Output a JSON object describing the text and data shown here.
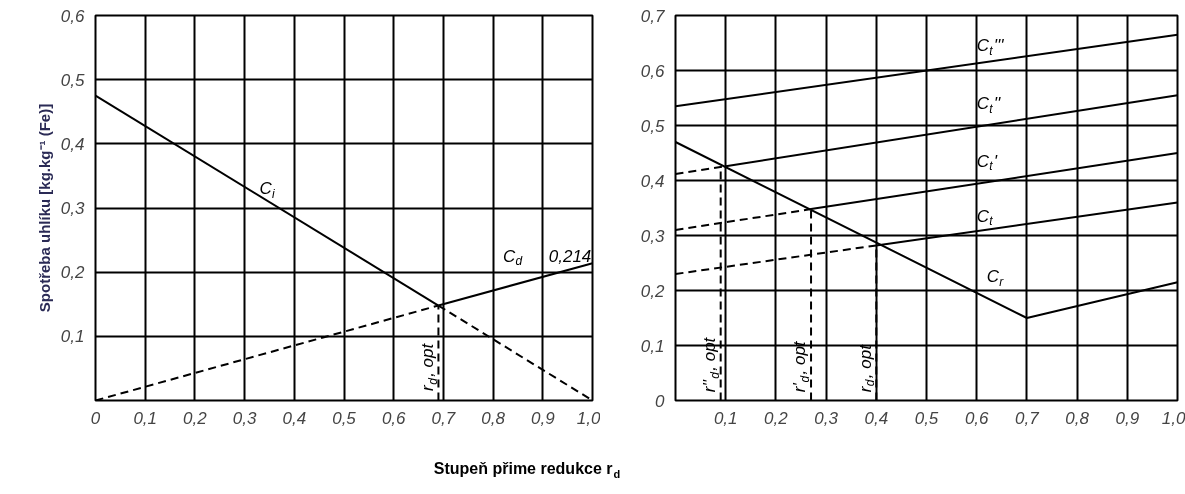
{
  "chart_data": [
    {
      "type": "line",
      "ylabel": "Spotřeba uhlíku [kg.kg⁻¹ (Fe)]",
      "xlabel": "Stupeň přime redukce r$_{d}$",
      "xlim": [
        0,
        1.0
      ],
      "ylim": [
        0,
        0.6
      ],
      "xticks": [
        {
          "value": 0,
          "label": "0"
        },
        {
          "value": 0.1,
          "label": "0,1"
        },
        {
          "value": 0.2,
          "label": "0,2"
        },
        {
          "value": 0.3,
          "label": "0,3"
        },
        {
          "value": 0.4,
          "label": "0,4"
        },
        {
          "value": 0.5,
          "label": "0,5"
        },
        {
          "value": 0.6,
          "label": "0,6"
        },
        {
          "value": 0.7,
          "label": "0,7"
        },
        {
          "value": 0.8,
          "label": "0,8"
        },
        {
          "value": 0.9,
          "label": "0,9"
        },
        {
          "value": 1.0,
          "label": "1,0"
        }
      ],
      "yticks": [
        {
          "value": 0.1,
          "label": "0,1"
        },
        {
          "value": 0.2,
          "label": "0,2"
        },
        {
          "value": 0.3,
          "label": "0,3"
        },
        {
          "value": 0.4,
          "label": "0,4"
        },
        {
          "value": 0.5,
          "label": "0,5"
        },
        {
          "value": 0.6,
          "label": "0,6"
        }
      ],
      "grid": true,
      "marker": "none",
      "series": [
        {
          "color": "#000000",
          "line_style": "solid",
          "x": [
            0,
            0.69
          ],
          "values": [
            0.475,
            0.148
          ]
        },
        {
          "color": "#000000",
          "line_style": "dashed",
          "x": [
            0.69,
            1.0
          ],
          "values": [
            0.148,
            0
          ]
        },
        {
          "color": "#000000",
          "line_style": "dashed",
          "x": [
            0,
            0.69
          ],
          "values": [
            0,
            0.148
          ]
        },
        {
          "color": "#000000",
          "line_style": "solid",
          "x": [
            0.69,
            1.0
          ],
          "values": [
            0.148,
            0.214
          ]
        },
        {
          "color": "#000000",
          "line_style": "dashed",
          "x": [
            0.69,
            0.69
          ],
          "values": [
            0,
            0.148
          ]
        }
      ],
      "annotations": [
        "C$_{i}$",
        "C$_{d}$",
        "0,214",
        "r$_{d}$, opt"
      ]
    },
    {
      "type": "line",
      "xlim": [
        0,
        1.0
      ],
      "ylim": [
        0,
        0.7
      ],
      "xticks": [
        {
          "value": 0.1,
          "label": "0,1"
        },
        {
          "value": 0.2,
          "label": "0,2"
        },
        {
          "value": 0.3,
          "label": "0,3"
        },
        {
          "value": 0.4,
          "label": "0,4"
        },
        {
          "value": 0.5,
          "label": "0,5"
        },
        {
          "value": 0.6,
          "label": "0,6"
        },
        {
          "value": 0.7,
          "label": "0,7"
        },
        {
          "value": 0.8,
          "label": "0,8"
        },
        {
          "value": 0.9,
          "label": "0,9"
        },
        {
          "value": 1.0,
          "label": "1,0"
        }
      ],
      "yticks": [
        {
          "value": 0,
          "label": "0"
        },
        {
          "value": 0.1,
          "label": "0,1"
        },
        {
          "value": 0.2,
          "label": "0,2"
        },
        {
          "value": 0.3,
          "label": "0,3"
        },
        {
          "value": 0.4,
          "label": "0,4"
        },
        {
          "value": 0.5,
          "label": "0,5"
        },
        {
          "value": 0.6,
          "label": "0,6"
        },
        {
          "value": 0.7,
          "label": "0,7"
        }
      ],
      "grid": true,
      "marker": "none",
      "series": [
        {
          "color": "#000000",
          "line_style": "solid",
          "x": [
            0,
            0.7,
            1.0
          ],
          "values": [
            0.47,
            0.15,
            0.215
          ]
        },
        {
          "color": "#000000",
          "line_style": "dashed",
          "x": [
            0,
            0.4
          ],
          "values": [
            0.23,
            0.282
          ]
        },
        {
          "color": "#000000",
          "line_style": "solid",
          "x": [
            0.4,
            1.0
          ],
          "values": [
            0.282,
            0.36
          ]
        },
        {
          "color": "#000000",
          "line_style": "dashed",
          "x": [
            0,
            0.27
          ],
          "values": [
            0.31,
            0.348
          ]
        },
        {
          "color": "#000000",
          "line_style": "solid",
          "x": [
            0.27,
            1.0
          ],
          "values": [
            0.348,
            0.45
          ]
        },
        {
          "color": "#000000",
          "line_style": "dashed",
          "x": [
            0,
            0.1
          ],
          "values": [
            0.412,
            0.426
          ]
        },
        {
          "color": "#000000",
          "line_style": "solid",
          "x": [
            0.1,
            1.0
          ],
          "values": [
            0.426,
            0.555
          ]
        },
        {
          "color": "#000000",
          "line_style": "solid",
          "x": [
            0,
            1.0
          ],
          "values": [
            0.535,
            0.665
          ]
        },
        {
          "color": "#000000",
          "line_style": "dashed",
          "x": [
            0.09,
            0.09
          ],
          "values": [
            0,
            0.426
          ]
        },
        {
          "color": "#000000",
          "line_style": "dashed",
          "x": [
            0.27,
            0.27
          ],
          "values": [
            0,
            0.348
          ]
        },
        {
          "color": "#000000",
          "line_style": "dashed",
          "x": [
            0.4,
            0.4
          ],
          "values": [
            0,
            0.282
          ]
        }
      ],
      "annotations": [
        "C$_{t}$'''",
        "C$_{t}$''",
        "C$_{t}$'",
        "C$_{t}$",
        "C$_{r}$",
        "r''$_{d}$, opt",
        "r'$_{d}$, opt",
        "r$_{d}$, opt"
      ]
    }
  ]
}
